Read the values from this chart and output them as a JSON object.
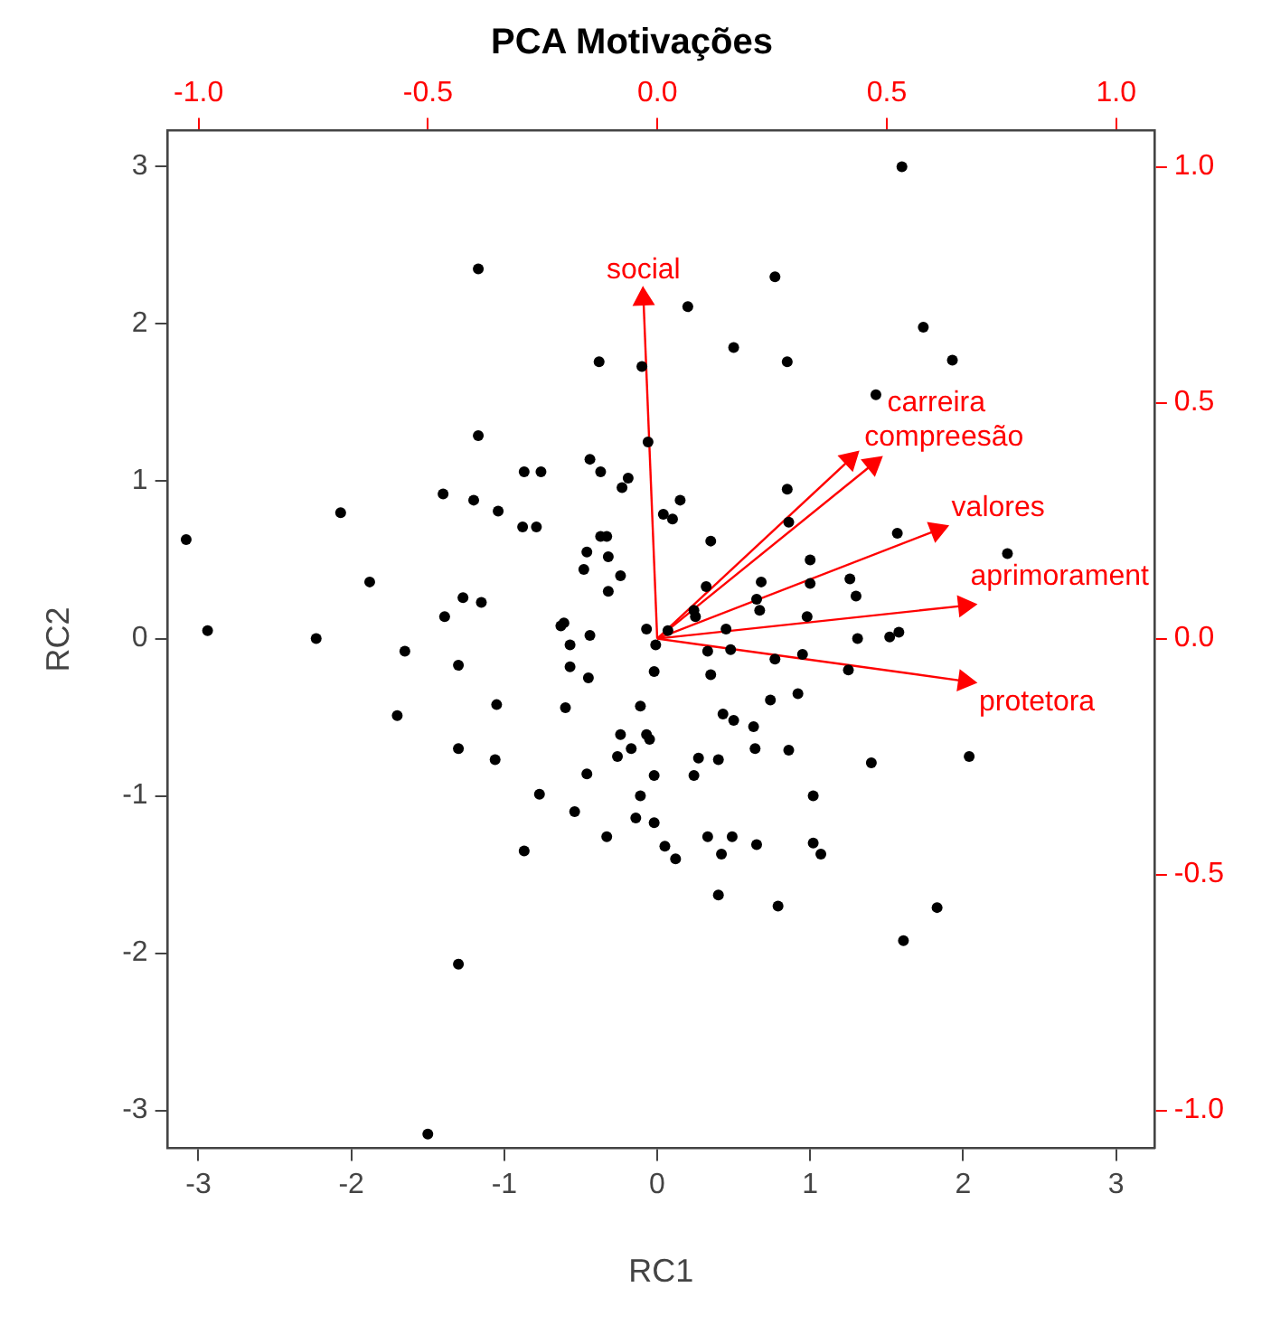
{
  "chart_data": {
    "type": "scatter",
    "title": "PCA Motivações",
    "xlabel": "RC1",
    "ylabel": "RC2",
    "xlim": [
      -3.2,
      3.25
    ],
    "ylim": [
      -3.24,
      3.23
    ],
    "xticks": [
      -3,
      -2,
      -1,
      0,
      1,
      2,
      3
    ],
    "yticks": [
      -3,
      -2,
      -1,
      0,
      1,
      2,
      3
    ],
    "x2lim": [
      -1.067,
      1.083
    ],
    "y2lim": [
      -1.08,
      1.077
    ],
    "x2ticks": [
      {
        "value": -1,
        "label": "-1.0"
      },
      {
        "value": -0.5,
        "label": "-0.5"
      },
      {
        "value": 0,
        "label": "0.0"
      },
      {
        "value": 0.5,
        "label": "0.5"
      },
      {
        "value": 1,
        "label": "1.0"
      }
    ],
    "y2ticks": [
      {
        "value": -1,
        "label": "-1.0"
      },
      {
        "value": -0.5,
        "label": "-0.5"
      },
      {
        "value": 0,
        "label": "0.0"
      },
      {
        "value": 0.5,
        "label": "0.5"
      },
      {
        "value": 1,
        "label": "1.0"
      }
    ],
    "grid": false,
    "legend": false,
    "marker": "circle",
    "series": [
      {
        "type": "scatter",
        "color": "#000000",
        "x": [
          -1.17,
          -0.38,
          -0.1,
          -1.17,
          -0.44,
          -0.37,
          -0.19,
          -0.23,
          -0.87,
          -0.76,
          -1.4,
          -1.2,
          -1.04,
          -2.07,
          -0.88,
          -0.79,
          -0.06,
          0.04,
          -3.08,
          -0.46,
          -0.33,
          -0.37,
          -0.32,
          -0.48,
          -0.24,
          -1.88,
          -0.32,
          -1.27,
          -1.15,
          -1.39,
          -2.94,
          -2.23,
          -0.63,
          -0.61,
          -0.44,
          -0.07,
          -0.57,
          -0.01,
          -1.65,
          -1.3,
          -0.57,
          -0.45,
          -0.02,
          -1.05,
          -0.6,
          -0.11,
          -1.7,
          -1.3,
          -1.06,
          -0.24,
          -0.07,
          -0.05,
          -0.17,
          -0.26,
          -0.46,
          -0.02,
          -0.77,
          -0.11,
          -0.54,
          -0.14,
          -0.02,
          -0.33,
          -0.87,
          0.05,
          -1.3,
          -1.5,
          0.33,
          0.48,
          0.77,
          0.95,
          1.25,
          1.31,
          1.52,
          1.58,
          0.35,
          0.74,
          0.92,
          0.43,
          0.5,
          0.63,
          0.64,
          0.86,
          0.27,
          0.4,
          0.24,
          1.4,
          2.04,
          1.02,
          0.33,
          0.49,
          0.65,
          1.02,
          1.07,
          0.12,
          0.42,
          0.4,
          0.79,
          1.83,
          1.61,
          1.6,
          0.77,
          0.2,
          1.74,
          1.93,
          0.5,
          0.85,
          1.43,
          0.85,
          0.15,
          0.1,
          0.86,
          0.35,
          1.57,
          2.29,
          1.0,
          0.68,
          0.32,
          1.0,
          1.26,
          1.3,
          0.65,
          0.67,
          0.24,
          0.25,
          0.98,
          0.45,
          0.07
        ],
        "values": [
          2.35,
          1.76,
          1.73,
          1.29,
          1.14,
          1.06,
          1.02,
          0.96,
          1.06,
          1.06,
          0.92,
          0.88,
          0.81,
          0.8,
          0.71,
          0.71,
          1.25,
          0.79,
          0.63,
          0.55,
          0.65,
          0.65,
          0.52,
          0.44,
          0.4,
          0.36,
          0.3,
          0.26,
          0.23,
          0.14,
          0.05,
          0.0,
          0.08,
          0.1,
          0.02,
          0.06,
          -0.04,
          -0.04,
          -0.08,
          -0.17,
          -0.18,
          -0.25,
          -0.21,
          -0.42,
          -0.44,
          -0.43,
          -0.49,
          -0.7,
          -0.77,
          -0.61,
          -0.61,
          -0.64,
          -0.7,
          -0.75,
          -0.86,
          -0.87,
          -0.99,
          -1.0,
          -1.1,
          -1.14,
          -1.17,
          -1.26,
          -1.35,
          -1.32,
          -2.07,
          -3.15,
          -0.08,
          -0.07,
          -0.13,
          -0.1,
          -0.2,
          0.0,
          0.01,
          0.04,
          -0.23,
          -0.39,
          -0.35,
          -0.48,
          -0.52,
          -0.56,
          -0.7,
          -0.71,
          -0.76,
          -0.77,
          -0.87,
          -0.79,
          -0.75,
          -1.0,
          -1.26,
          -1.26,
          -1.31,
          -1.3,
          -1.37,
          -1.4,
          -1.37,
          -1.63,
          -1.7,
          -1.71,
          -1.92,
          3.0,
          2.3,
          2.11,
          1.98,
          1.77,
          1.85,
          1.76,
          1.55,
          0.95,
          0.88,
          0.76,
          0.74,
          0.62,
          0.67,
          0.54,
          0.5,
          0.36,
          0.33,
          0.35,
          0.38,
          0.27,
          0.25,
          0.18,
          0.18,
          0.14,
          0.14,
          0.06,
          0.05
        ]
      },
      {
        "type": "line",
        "axis": "y2",
        "marker": "triangle",
        "name": "social",
        "color": "#ff0000",
        "x": [
          0,
          -0.09
        ],
        "values": [
          0,
          0.72
        ]
      },
      {
        "type": "line",
        "axis": "y2",
        "marker": "triangle",
        "name": "compreesão",
        "color": "#ff0000",
        "x": [
          0,
          1.26
        ],
        "values": [
          0,
          0.38
        ]
      },
      {
        "type": "line",
        "axis": "y2",
        "marker": "triangle",
        "name": "carreira",
        "color": "#ff0000",
        "x": [
          0,
          1.41
        ],
        "values": [
          0,
          0.37
        ]
      },
      {
        "type": "line",
        "axis": "y2",
        "marker": "triangle",
        "name": "valores",
        "color": "#ff0000",
        "x": [
          0,
          1.83
        ],
        "values": [
          0,
          0.23
        ]
      },
      {
        "type": "line",
        "axis": "y2",
        "marker": "triangle",
        "name": "aprimorament",
        "color": "#ff0000",
        "x": [
          0,
          2.01
        ],
        "values": [
          0,
          0.07
        ]
      },
      {
        "type": "line",
        "axis": "y2",
        "marker": "triangle",
        "name": "protetora",
        "color": "#ff0000",
        "x": [
          0,
          2.01
        ],
        "values": [
          0,
          -0.09
        ]
      }
    ]
  }
}
